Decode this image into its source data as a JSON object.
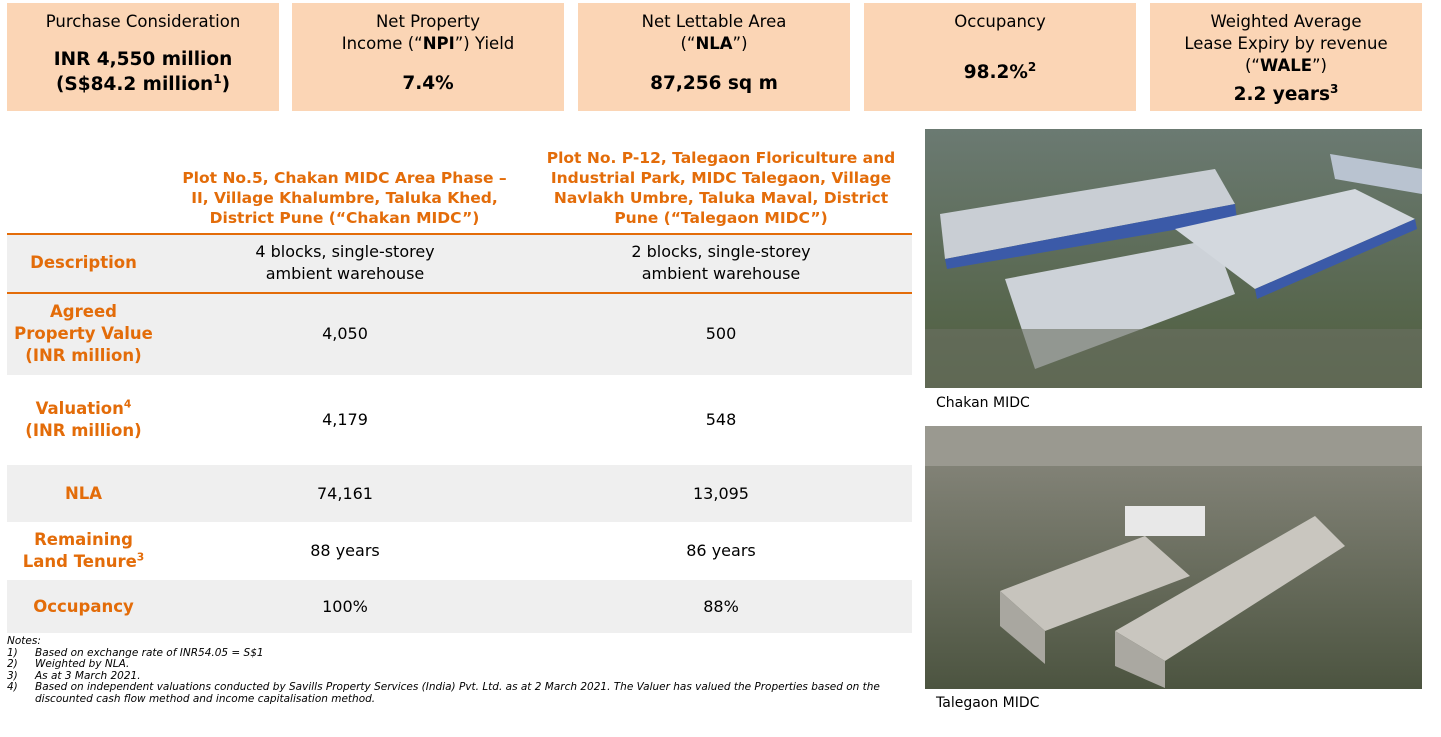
{
  "kpis": [
    {
      "label": [
        [
          {
            "text": "Purchase Consideration"
          }
        ]
      ],
      "value": [
        [
          {
            "text": "INR 4,550 million"
          }
        ],
        [
          {
            "text": "(S$84.2 million"
          },
          {
            "text": "1",
            "sup": true
          },
          {
            "text": ")"
          }
        ]
      ]
    },
    {
      "label": [
        [
          {
            "text": "Net Property"
          }
        ],
        [
          {
            "text": "Income (“"
          },
          {
            "text": "NPI",
            "bold": true
          },
          {
            "text": "”) Yield"
          }
        ]
      ],
      "value": [
        [
          {
            "text": "7.4%"
          }
        ]
      ]
    },
    {
      "label": [
        [
          {
            "text": "Net Lettable Area"
          }
        ],
        [
          {
            "text": "(“"
          },
          {
            "text": "NLA",
            "bold": true
          },
          {
            "text": "”)"
          }
        ]
      ],
      "value": [
        [
          {
            "text": "87,256 sq m"
          }
        ]
      ]
    },
    {
      "label": [
        [
          {
            "text": "Occupancy"
          }
        ]
      ],
      "value": [
        [
          {
            "text": "98.2%"
          },
          {
            "text": "2",
            "sup": true
          }
        ]
      ]
    },
    {
      "label": [
        [
          {
            "text": "Weighted Average"
          }
        ],
        [
          {
            "text": "Lease Expiry by revenue"
          }
        ],
        [
          {
            "text": "(“"
          },
          {
            "text": "WALE",
            "bold": true
          },
          {
            "text": "”)"
          }
        ]
      ],
      "value": [
        [
          {
            "text": "2.2 years"
          },
          {
            "text": "3",
            "sup": true
          }
        ]
      ]
    }
  ],
  "table": {
    "columns": [
      "Plot No.5, Chakan MIDC Area Phase – II, Village Khalumbre, Taluka Khed, District Pune (“Chakan MIDC”)",
      "Plot No. P-12, Talegaon Floriculture and Industrial Park, MIDC Talegaon, Village Navlakh Umbre, Taluka Maval, District Pune (“Talegaon MIDC”)"
    ],
    "rows": [
      {
        "label": [
          {
            "text": "Description"
          }
        ],
        "cells": [
          "4 blocks, single-storey ambient warehouse",
          "2 blocks, single-storey ambient warehouse"
        ]
      },
      {
        "label": [
          {
            "text": "Agreed Property Value (INR million)"
          }
        ],
        "cells": [
          "4,050",
          "500"
        ]
      },
      {
        "label": [
          {
            "text": "Valuation"
          },
          {
            "text": "4",
            "sup": true
          },
          {
            "text": " (INR million)"
          }
        ],
        "cells": [
          "4,179",
          "548"
        ]
      },
      {
        "label": [
          {
            "text": "NLA"
          }
        ],
        "cells": [
          "74,161",
          "13,095"
        ]
      },
      {
        "label": [
          {
            "text": "Remaining Land Tenure"
          },
          {
            "text": "3",
            "sup": true
          }
        ],
        "cells": [
          "88 years",
          "86 years"
        ]
      },
      {
        "label": [
          {
            "text": "Occupancy"
          }
        ],
        "cells": [
          "100%",
          "88%"
        ]
      }
    ]
  },
  "photos": [
    {
      "caption": "Chakan MIDC"
    },
    {
      "caption": "Talegaon MIDC"
    }
  ],
  "notes": {
    "heading": "Notes:",
    "items": [
      {
        "marker": "1)",
        "text": "Based on exchange rate of INR54.05 = S$1"
      },
      {
        "marker": "2)",
        "text": "Weighted by NLA."
      },
      {
        "marker": "3)",
        "text": "As at 3 March 2021."
      },
      {
        "marker": "4)",
        "text": "Based on independent valuations conducted by Savills Property Services (India) Pvt. Ltd. as at 2 March 2021. The Valuer has valued the Properties based on the discounted cash flow method and income capitalisation method."
      }
    ]
  }
}
